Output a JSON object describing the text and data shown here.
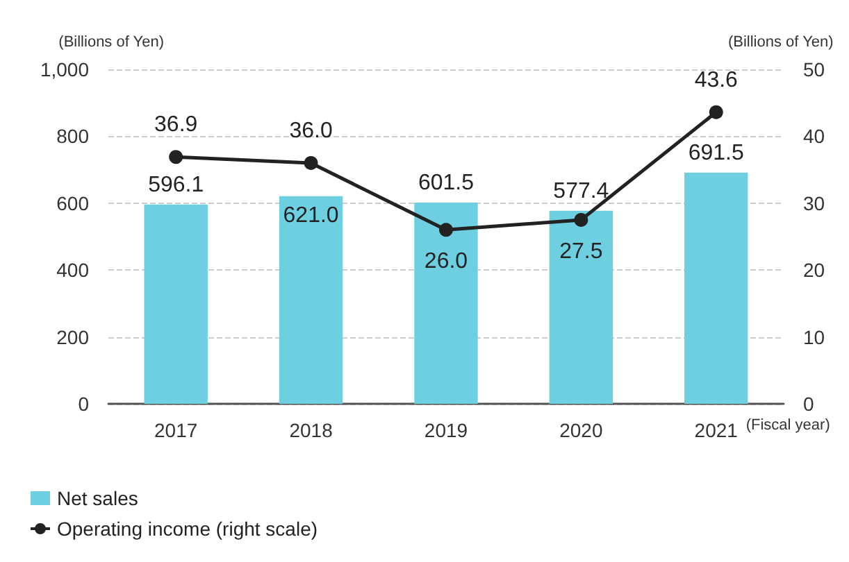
{
  "chart_data": {
    "type": "bar",
    "categories": [
      "2017",
      "2018",
      "2019",
      "2020",
      "2021"
    ],
    "xlabel": "(Fiscal year)",
    "ylabel": "(Billions of Yen)",
    "y2label": "(Billions of Yen)",
    "series": [
      {
        "name": "Net sales",
        "color": "#6ecfe0",
        "values": [
          596.1,
          621.0,
          601.5,
          577.4,
          691.5
        ],
        "value_labels": [
          "596.1",
          "621.0",
          "601.5",
          "577.4",
          "691.5"
        ]
      },
      {
        "name": "Operating income (right scale)",
        "type": "line",
        "axis": "y2",
        "color": "#222222",
        "values": [
          36.9,
          36.0,
          26.0,
          27.5,
          43.6
        ],
        "value_labels": [
          "36.9",
          "36.0",
          "26.0",
          "27.5",
          "43.6"
        ]
      }
    ],
    "ylim": [
      0,
      1000
    ],
    "yticks": [
      0,
      200,
      400,
      600,
      800,
      {
        "value": 1000,
        "label": "1,000"
      }
    ],
    "y2lim": [
      0,
      50
    ],
    "y2ticks": [
      0,
      10,
      20,
      30,
      40,
      50
    ],
    "grid": "y",
    "legend": "bottom left",
    "marker": "circle",
    "line_style": "solid"
  }
}
